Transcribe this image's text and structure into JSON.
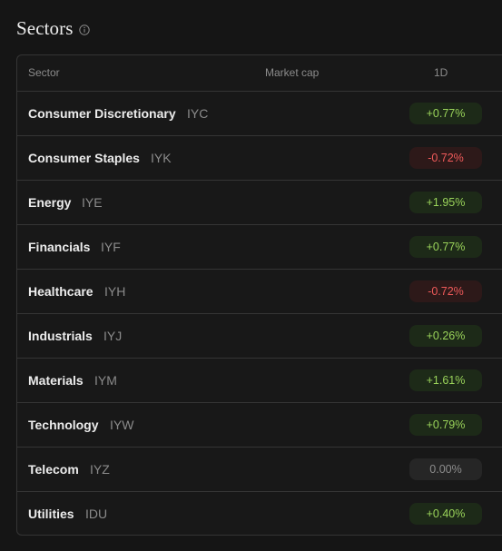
{
  "header": {
    "title": "Sectors",
    "info_icon": "info-icon"
  },
  "table": {
    "columns": {
      "sector": "Sector",
      "market_cap": "Market cap",
      "change_1d": "1D"
    },
    "rows": [
      {
        "name": "Consumer Discretionary",
        "ticker": "IYC",
        "change": "+0.77%",
        "trend": "positive"
      },
      {
        "name": "Consumer Staples",
        "ticker": "IYK",
        "change": "-0.72%",
        "trend": "negative"
      },
      {
        "name": "Energy",
        "ticker": "IYE",
        "change": "+1.95%",
        "trend": "positive"
      },
      {
        "name": "Financials",
        "ticker": "IYF",
        "change": "+0.77%",
        "trend": "positive"
      },
      {
        "name": "Healthcare",
        "ticker": "IYH",
        "change": "-0.72%",
        "trend": "negative"
      },
      {
        "name": "Industrials",
        "ticker": "IYJ",
        "change": "+0.26%",
        "trend": "positive"
      },
      {
        "name": "Materials",
        "ticker": "IYM",
        "change": "+1.61%",
        "trend": "positive"
      },
      {
        "name": "Technology",
        "ticker": "IYW",
        "change": "+0.79%",
        "trend": "positive"
      },
      {
        "name": "Telecom",
        "ticker": "IYZ",
        "change": "0.00%",
        "trend": "neutral"
      },
      {
        "name": "Utilities",
        "ticker": "IDU",
        "change": "+0.40%",
        "trend": "positive"
      }
    ]
  },
  "colors": {
    "background": "#151515",
    "positive": "#9ad35a",
    "negative": "#ef5a5a",
    "neutral": "#8d8d8d"
  }
}
